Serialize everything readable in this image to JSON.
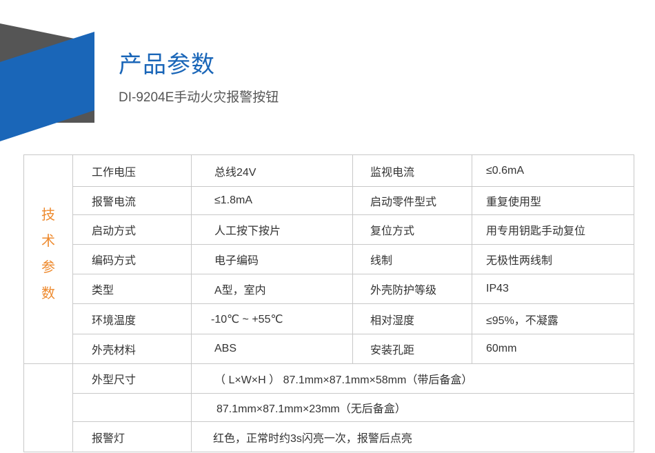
{
  "header": {
    "title": "产品参数",
    "subtitle": "DI-9204E手动火灾报警按钮",
    "accent_color": "#1a66b8",
    "secondary_color": "#555555"
  },
  "table": {
    "side_label": [
      "技",
      "术",
      "参",
      "数"
    ],
    "side_label_color": "#ee8a2e",
    "rows": [
      [
        "工作电压",
        "总线24V",
        "监视电流",
        "≤0.6mA"
      ],
      [
        "报警电流",
        "≤1.8mA",
        "启动零件型式",
        "重复使用型"
      ],
      [
        "启动方式",
        "人工按下按片",
        "复位方式",
        "用专用钥匙手动复位"
      ],
      [
        "编码方式",
        "电子编码",
        "线制",
        "无极性两线制"
      ],
      [
        "类型",
        "A型，室内",
        "外壳防护等级",
        "IP43"
      ],
      [
        "环境温度",
        "-10℃ ~ +55℃",
        "相对湿度",
        "≤95%，不凝露"
      ],
      [
        "外壳材料",
        "ABS",
        "安装孔距",
        "60mm"
      ]
    ],
    "dimensions": {
      "label": "外型尺寸",
      "line1": "（ L×W×H ） 87.1mm×87.1mm×58mm（带后备盒）",
      "line2": "87.1mm×87.1mm×23mm（无后备盒）"
    },
    "alarm_light": {
      "label": "报警灯",
      "value": "红色，正常时约3s闪亮一次，报警后点亮"
    }
  }
}
